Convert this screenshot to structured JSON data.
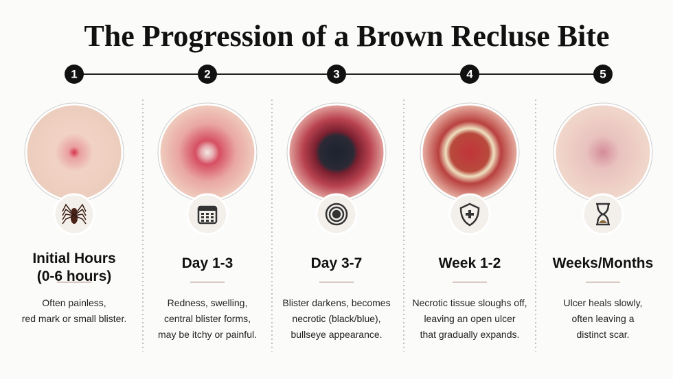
{
  "title": "The Progression of a Brown Recluse Bite",
  "stages": [
    {
      "number": "1",
      "heading": [
        "Initial Hours",
        "(0-6 hours)"
      ],
      "description": [
        "Often painless,",
        "red mark or small blister."
      ]
    },
    {
      "number": "2",
      "heading": [
        "Day 1-3"
      ],
      "description": [
        "Redness, swelling,",
        "central blister forms,",
        "may be itchy or painful."
      ]
    },
    {
      "number": "3",
      "heading": [
        "Day 3-7"
      ],
      "description": [
        "Blister darkens, becomes",
        "necrotic (black/blue),",
        "bullseye appearance."
      ]
    },
    {
      "number": "4",
      "heading": [
        "Week 1-2"
      ],
      "description": [
        "Necrotic tissue sloughs off,",
        "leaving an open ulcer",
        "that gradually expands."
      ]
    },
    {
      "number": "5",
      "heading": [
        "Weeks/Months"
      ],
      "description": [
        "Ulcer heals slowly,",
        "often leaving a",
        "distinct scar."
      ]
    }
  ]
}
